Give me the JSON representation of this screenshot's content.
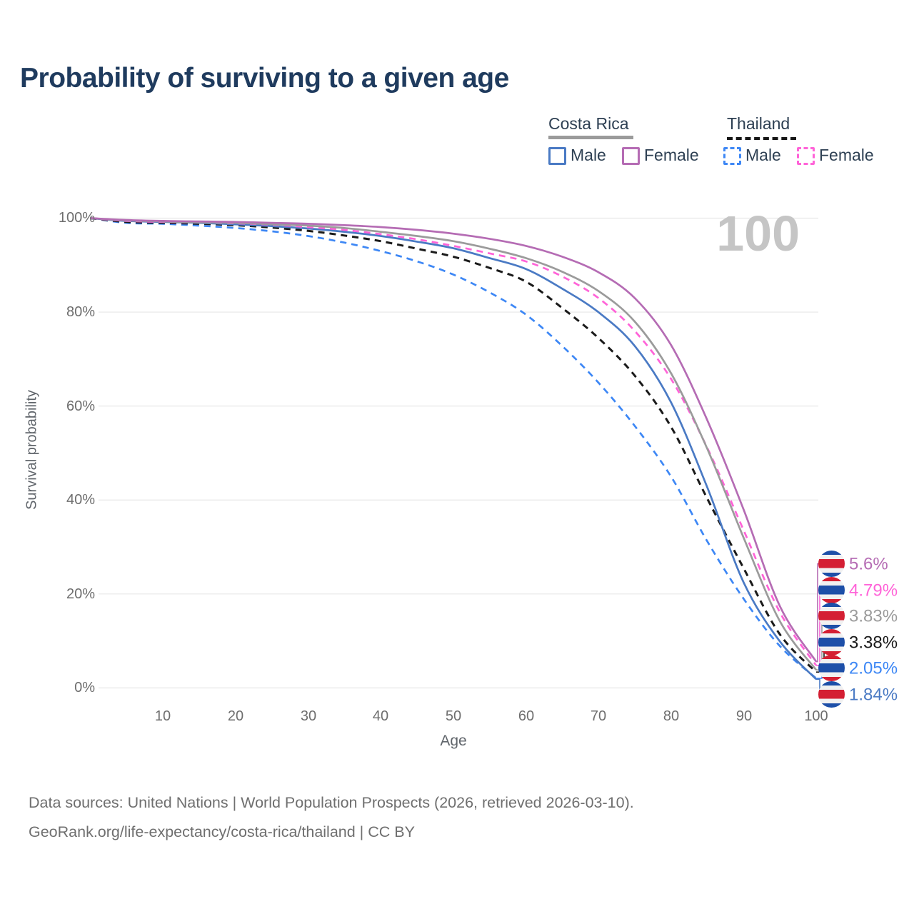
{
  "title": "Probability of surviving to a given age",
  "legend": {
    "groups": [
      {
        "label": "Costa Rica",
        "line_style": "solid",
        "underline_color": "#9b9b9b",
        "items": [
          {
            "label": "Male",
            "color": "#4a7ac4"
          },
          {
            "label": "Female",
            "color": "#b56cb4"
          }
        ]
      },
      {
        "label": "Thailand",
        "line_style": "dashed",
        "underline_color": "#161616",
        "items": [
          {
            "label": "Male",
            "color": "#3d87f5"
          },
          {
            "label": "Female",
            "color": "#ff63d8"
          }
        ]
      }
    ]
  },
  "chart_data": {
    "type": "line",
    "title": "Probability of surviving to a given age",
    "xlabel": "Age",
    "ylabel": "Survival probability",
    "xlim": [
      0,
      100
    ],
    "ylim": [
      0,
      100
    ],
    "xticks": [
      10,
      20,
      30,
      40,
      50,
      60,
      70,
      80,
      90,
      100
    ],
    "yticks": [
      "0%",
      "20%",
      "40%",
      "60%",
      "80%",
      "100%"
    ],
    "grid": "horizontal",
    "watermark": "100",
    "x": [
      0,
      5,
      10,
      15,
      20,
      25,
      30,
      35,
      40,
      45,
      50,
      55,
      60,
      65,
      70,
      75,
      80,
      85,
      90,
      95,
      100
    ],
    "series": [
      {
        "key": "th_male",
        "name": "Thailand Male",
        "country": "Thailand",
        "sex": "male",
        "color": "#3d87f5",
        "dash": true,
        "values": [
          100,
          99.0,
          98.8,
          98.4,
          97.9,
          97.2,
          96.2,
          94.8,
          93.0,
          90.8,
          88.0,
          84.2,
          79.5,
          72.8,
          65.0,
          55.8,
          45.0,
          31.2,
          19.0,
          8.9,
          2.05
        ],
        "end_label": "2.05%"
      },
      {
        "key": "th_total",
        "name": "Thailand",
        "country": "Thailand",
        "sex": "both",
        "color": "#1a1a1a",
        "dash": true,
        "values": [
          100,
          99.2,
          99.0,
          98.8,
          98.5,
          98.0,
          97.3,
          96.3,
          95.1,
          93.5,
          91.8,
          89.4,
          86.5,
          80.9,
          74.5,
          66.5,
          55.6,
          40.3,
          25.5,
          11.4,
          3.38
        ],
        "end_label": "3.38%"
      },
      {
        "key": "cr_male",
        "name": "Costa Rica Male",
        "country": "Costa Rica",
        "sex": "male",
        "color": "#4a7ac4",
        "dash": false,
        "values": [
          100,
          99.4,
          99.2,
          99.0,
          98.7,
          98.3,
          97.8,
          97.1,
          96.2,
          95.0,
          93.6,
          91.5,
          89.2,
          85.0,
          80.0,
          72.8,
          60.8,
          42.7,
          22.5,
          9.9,
          1.84
        ],
        "end_label": "1.84%"
      },
      {
        "key": "th_female",
        "name": "Thailand Female",
        "country": "Thailand",
        "sex": "female",
        "color": "#ff63d8",
        "dash": true,
        "values": [
          100,
          99.4,
          99.2,
          99.1,
          98.9,
          98.6,
          98.1,
          97.5,
          96.6,
          95.5,
          94.1,
          92.5,
          90.8,
          87.6,
          83.0,
          76.0,
          65.8,
          51.1,
          33.6,
          16.1,
          4.79
        ],
        "end_label": "4.79%"
      },
      {
        "key": "cr_total",
        "name": "Costa Rica",
        "country": "Costa Rica",
        "sex": "both",
        "color": "#9b9b9b",
        "dash": false,
        "values": [
          100,
          99.5,
          99.3,
          99.1,
          99.0,
          98.7,
          98.4,
          97.9,
          97.1,
          96.2,
          95.1,
          93.5,
          91.5,
          88.6,
          84.5,
          78.0,
          67.0,
          50.9,
          32.0,
          14.2,
          3.83
        ],
        "end_label": "3.83%"
      },
      {
        "key": "cr_female",
        "name": "Costa Rica Female",
        "country": "Costa Rica",
        "sex": "female",
        "color": "#b56cb4",
        "dash": false,
        "values": [
          100,
          99.6,
          99.4,
          99.3,
          99.2,
          99.0,
          98.8,
          98.5,
          98.1,
          97.5,
          96.7,
          95.6,
          94.1,
          91.8,
          88.5,
          83.0,
          73.0,
          57.0,
          38.0,
          17.4,
          5.6
        ],
        "end_label": "5.6%"
      }
    ]
  },
  "right_labels": [
    {
      "text": "5.6%",
      "series_key": "cr_female",
      "series": "Costa Rica Female",
      "flag": "costa-rica",
      "color": "#b56cb4"
    },
    {
      "text": "4.79%",
      "series_key": "th_female",
      "series": "Thailand Female",
      "flag": "thailand",
      "color": "#ff63d8"
    },
    {
      "text": "3.83%",
      "series_key": "cr_total",
      "series": "Costa Rica",
      "flag": "costa-rica",
      "color": "#9b9b9b"
    },
    {
      "text": "3.38%",
      "series_key": "th_total",
      "series": "Thailand",
      "flag": "thailand",
      "color": "#1a1a1a"
    },
    {
      "text": "2.05%",
      "series_key": "th_male",
      "series": "Thailand Male",
      "flag": "thailand",
      "color": "#3d87f5"
    },
    {
      "text": "1.84%",
      "series_key": "cr_male",
      "series": "Costa Rica Male",
      "flag": "costa-rica",
      "color": "#4a7ac4"
    }
  ],
  "footer": {
    "line1": "Data sources: United Nations | World Population Prospects (2026, retrieved 2026-03-10).",
    "line2": "GeoRank.org/life-expectancy/costa-rica/thailand | CC BY"
  },
  "colors": {
    "title_text": "#1f3b5e",
    "axis_text": "#6e6e6e",
    "grid_line": "#e7e7e7",
    "watermark": "#c5c5c5",
    "footer_text": "#6f6f6f",
    "flag_red": "#d41f33",
    "flag_blue": "#1d4fa8",
    "costa_rica_male": "#4a7ac4",
    "costa_rica_female": "#b56cb4",
    "costa_rica_total": "#9b9b9b",
    "thailand_male": "#3d87f5",
    "thailand_female": "#ff63d8",
    "thailand_total": "#1a1a1a"
  }
}
